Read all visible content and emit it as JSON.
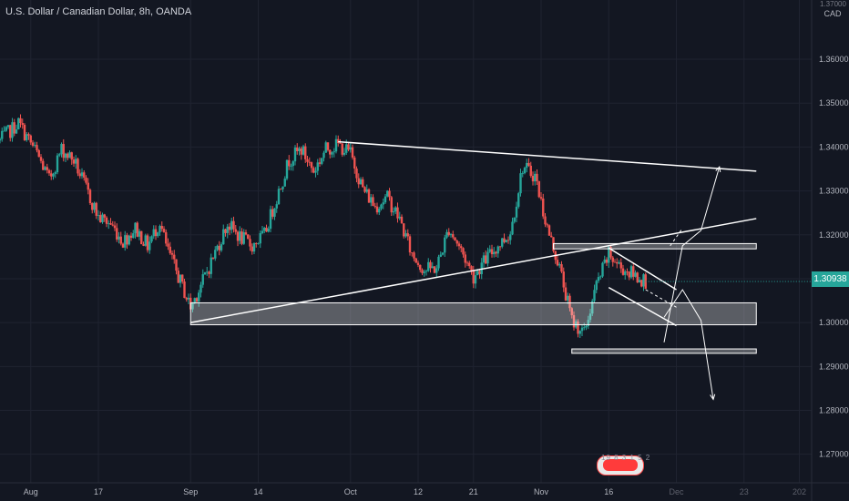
{
  "chart_title": "U.S. Dollar / Canadian Dollar, 8h, OANDA",
  "currency": "CAD",
  "currency_top": "1.37000",
  "last_price": "1.30938",
  "logo_caption": "19 8 3 1 5 2",
  "colors": {
    "background": "#131722",
    "grid": "#1f2330",
    "up": "#26a69a",
    "down": "#ef5350",
    "axis_text": "#b2b5be",
    "drawing": "#ffffff"
  },
  "chart_data": {
    "type": "candlestick",
    "title": "U.S. Dollar / Canadian Dollar, 8h, OANDA",
    "ylim": [
      1.2635,
      1.3735
    ],
    "y_ticks": [
      "1.36000",
      "1.35000",
      "1.34000",
      "1.33000",
      "1.32000",
      "1.31000",
      "1.30000",
      "1.29000",
      "1.28000",
      "1.27000"
    ],
    "y_tick_values": [
      1.36,
      1.35,
      1.34,
      1.33,
      1.32,
      1.31,
      1.3,
      1.29,
      1.28,
      1.27
    ],
    "x_ticks": [
      "Aug",
      "17",
      "Sep",
      "14",
      "Oct",
      "12",
      "21",
      "Nov",
      "16",
      "Dec",
      "23",
      "202"
    ],
    "x_tick_days": [
      -5,
      6,
      21,
      32,
      47,
      58,
      67,
      78,
      89,
      100,
      111,
      120
    ],
    "x_ticks_muted": [
      "Dec",
      "23",
      "202"
    ],
    "xlim_days": [
      -10,
      122
    ],
    "price_path": [
      [
        -10,
        1.3415
      ],
      [
        -7,
        1.3455
      ],
      [
        -4,
        1.3385
      ],
      [
        -2,
        1.3325
      ],
      [
        0,
        1.3395
      ],
      [
        2,
        1.337
      ],
      [
        4,
        1.3305
      ],
      [
        6,
        1.324
      ],
      [
        8,
        1.3225
      ],
      [
        10,
        1.3185
      ],
      [
        12,
        1.3215
      ],
      [
        14,
        1.3175
      ],
      [
        16,
        1.323
      ],
      [
        17,
        1.3175
      ],
      [
        19,
        1.3105
      ],
      [
        21,
        1.3035
      ],
      [
        23,
        1.3095
      ],
      [
        25,
        1.316
      ],
      [
        27,
        1.3225
      ],
      [
        29,
        1.3195
      ],
      [
        31,
        1.3175
      ],
      [
        33,
        1.32
      ],
      [
        35,
        1.3285
      ],
      [
        37,
        1.337
      ],
      [
        39,
        1.3395
      ],
      [
        41,
        1.3345
      ],
      [
        43,
        1.3395
      ],
      [
        45,
        1.3405
      ],
      [
        47,
        1.3385
      ],
      [
        49,
        1.3305
      ],
      [
        51,
        1.3265
      ],
      [
        53,
        1.3285
      ],
      [
        55,
        1.3235
      ],
      [
        57,
        1.3155
      ],
      [
        59,
        1.312
      ],
      [
        61,
        1.3125
      ],
      [
        63,
        1.3215
      ],
      [
        65,
        1.3165
      ],
      [
        67,
        1.3105
      ],
      [
        69,
        1.3145
      ],
      [
        71,
        1.3175
      ],
      [
        73,
        1.3205
      ],
      [
        75,
        1.3355
      ],
      [
        77,
        1.3335
      ],
      [
        79,
        1.3215
      ],
      [
        81,
        1.3125
      ],
      [
        83,
        1.3005
      ],
      [
        85,
        1.2975
      ],
      [
        87,
        1.3085
      ],
      [
        89,
        1.3155
      ],
      [
        91,
        1.3125
      ],
      [
        93,
        1.311
      ],
      [
        95,
        1.3094
      ]
    ],
    "box_zones": [
      {
        "d1": 21,
        "d2": 113,
        "p1": 1.3045,
        "p2": 1.2995
      },
      {
        "d1": 80,
        "d2": 113,
        "p1": 1.318,
        "p2": 1.3168
      },
      {
        "d1": 83,
        "d2": 113,
        "p1": 1.294,
        "p2": 1.293
      }
    ],
    "trend_lines": [
      {
        "d1": 45,
        "p1": 1.3412,
        "d2": 113,
        "p2": 1.3345
      },
      {
        "d1": 21,
        "p1": 1.3,
        "d2": 113,
        "p2": 1.3237
      },
      {
        "d1": 89,
        "p1": 1.317,
        "d2": 100,
        "p2": 1.3075
      },
      {
        "d1": 89,
        "p1": 1.308,
        "d2": 100,
        "p2": 1.2993
      }
    ],
    "arrows": [
      {
        "path": [
          [
            98,
            1.3012
          ],
          [
            101,
            1.3075
          ],
          [
            104,
            1.3005
          ],
          [
            106,
            1.2825
          ]
        ]
      },
      {
        "path": [
          [
            98,
            1.2955
          ],
          [
            101,
            1.3175
          ],
          [
            104,
            1.321
          ],
          [
            107,
            1.3355
          ]
        ]
      },
      {
        "path": [
          [
            95,
            1.3075
          ],
          [
            100,
            1.3035
          ]
        ],
        "dashed": true
      },
      {
        "path": [
          [
            99,
            1.3175
          ],
          [
            101,
            1.3215
          ]
        ],
        "dashed": true
      }
    ]
  }
}
